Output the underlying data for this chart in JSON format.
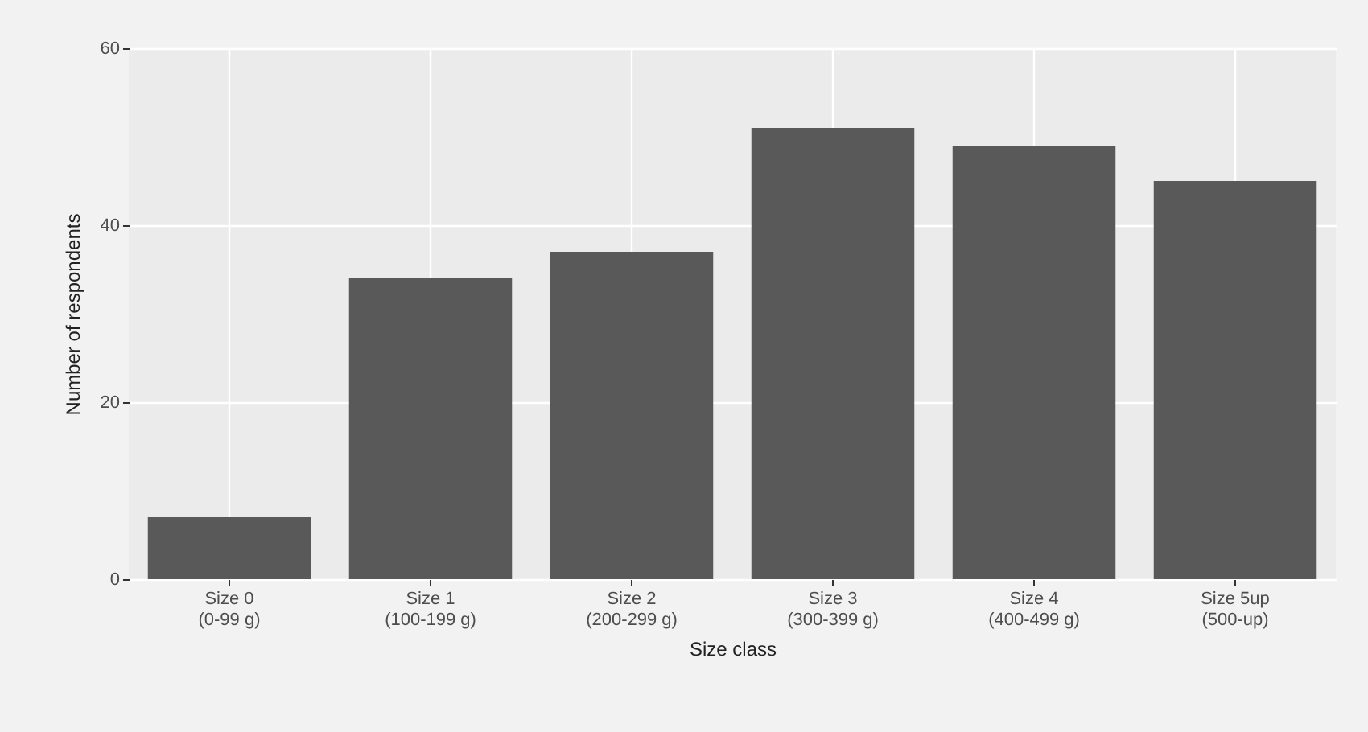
{
  "chart_data": {
    "type": "bar",
    "xlabel": "Size class",
    "ylabel": "Number of respondents",
    "categories": [
      "Size 0 (0-99 g)",
      "Size 1 (100-199 g)",
      "Size 2 (200-299 g)",
      "Size 3 (300-399 g)",
      "Size 4 (400-499 g)",
      "Size 5up (500-up)"
    ],
    "values": [
      7,
      34,
      37,
      51,
      49,
      45
    ],
    "color": "#595959",
    "ylim": [
      0,
      60
    ],
    "yticks": [
      0,
      20,
      40,
      60
    ],
    "grid": true
  }
}
